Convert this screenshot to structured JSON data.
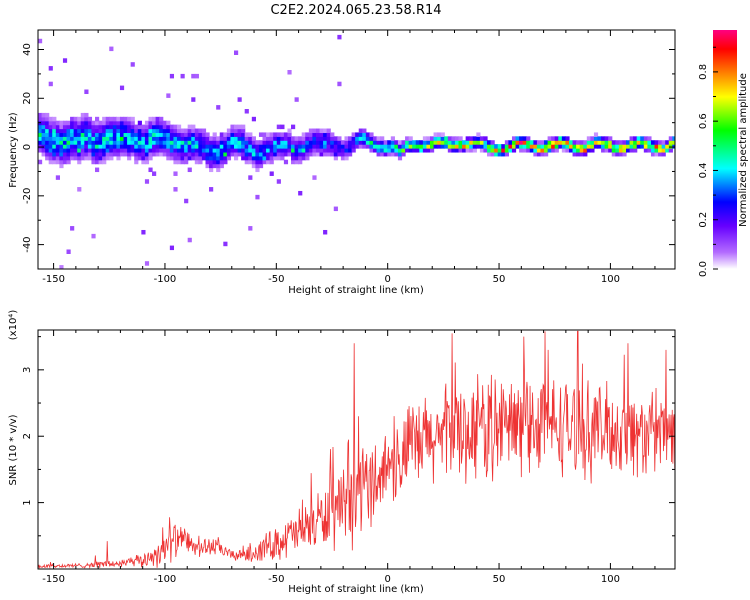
{
  "title": "C2E2.2024.065.23.58.R14",
  "chart_data": [
    {
      "type": "heatmap",
      "xlabel": "Height of straight line (km)",
      "ylabel": "Frequency (Hz)",
      "xlim": [
        -157,
        129
      ],
      "ylim": [
        -50,
        48
      ],
      "x_ticks": [
        -150,
        -100,
        -50,
        0,
        50,
        100
      ],
      "y_ticks": [
        -40,
        -20,
        0,
        20,
        40
      ],
      "colorbar": {
        "label": "Normalized spectral amplitude",
        "range": [
          0,
          0.97
        ],
        "ticks": [
          0.0,
          0.2,
          0.4,
          0.6,
          0.8
        ],
        "colormap": [
          "#ffffff",
          "#b36bff",
          "#6600ff",
          "#0000ff",
          "#00ffff",
          "#00ff00",
          "#ffff00",
          "#ff8000",
          "#ff0000",
          "#ff0080"
        ]
      },
      "ridge": {
        "x": [
          -157,
          -140,
          -120,
          -100,
          -90,
          -80,
          -70,
          -60,
          -50,
          -40,
          -30,
          -20,
          -10,
          0,
          5,
          10,
          20,
          30,
          40,
          50,
          60,
          80,
          100,
          129
        ],
        "center_hz": [
          3,
          2,
          3,
          2,
          1,
          -3,
          1,
          -2,
          -1,
          0,
          1,
          -1,
          2,
          0,
          -3,
          1,
          0,
          1,
          0,
          -1,
          0,
          0,
          0,
          0
        ],
        "peak_amplitude": [
          0.45,
          0.5,
          0.45,
          0.45,
          0.45,
          0.42,
          0.45,
          0.4,
          0.4,
          0.35,
          0.35,
          0.3,
          0.5,
          0.55,
          0.6,
          0.7,
          0.8,
          0.9,
          0.75,
          0.85,
          0.95,
          0.9,
          0.9,
          0.9
        ],
        "spread_hz": [
          14,
          14,
          13,
          12,
          11,
          11,
          10,
          10,
          9,
          9,
          9,
          7,
          6,
          5,
          5,
          4,
          4,
          4,
          4,
          4,
          4,
          4,
          4,
          4
        ]
      },
      "grid": false
    },
    {
      "type": "line",
      "xlabel": "Height of straight line (km)",
      "ylabel": "SNR (10 * v/v)",
      "multiplier": "(x10⁴)",
      "xlim": [
        -157,
        129
      ],
      "ylim": [
        0,
        3.6
      ],
      "x_ticks": [
        -150,
        -100,
        -50,
        0,
        50,
        100
      ],
      "y_ticks": [
        1,
        2,
        3
      ],
      "series": [
        {
          "color": "#ee3333",
          "envelope_x": [
            -157,
            -140,
            -130,
            -120,
            -110,
            -100,
            -95,
            -90,
            -85,
            -80,
            -75,
            -70,
            -60,
            -50,
            -40,
            -30,
            -20,
            -15,
            -10,
            -5,
            0,
            5,
            10,
            20,
            30,
            40,
            50,
            60,
            70,
            80,
            90,
            100,
            110,
            120,
            129
          ],
          "envelope_mean": [
            0.04,
            0.05,
            0.07,
            0.08,
            0.12,
            0.3,
            0.45,
            0.4,
            0.3,
            0.35,
            0.3,
            0.2,
            0.25,
            0.4,
            0.55,
            0.75,
            0.85,
            1.05,
            1.25,
            1.4,
            1.55,
            1.65,
            1.8,
            1.95,
            2.05,
            2.1,
            2.15,
            2.15,
            2.2,
            2.15,
            2.1,
            2.1,
            2.05,
            2.0,
            2.05
          ],
          "envelope_amplitude": [
            0.03,
            0.03,
            0.05,
            0.06,
            0.1,
            0.25,
            0.25,
            0.18,
            0.12,
            0.15,
            0.1,
            0.08,
            0.15,
            0.25,
            0.35,
            0.45,
            0.55,
            0.7,
            0.6,
            0.6,
            0.55,
            0.6,
            0.65,
            0.7,
            0.75,
            0.75,
            0.75,
            0.75,
            0.7,
            0.7,
            0.7,
            0.65,
            0.65,
            0.6,
            0.6
          ],
          "spikes": [
            {
              "x": -15,
              "y": 3.4
            },
            {
              "x": -13,
              "y": 2.3
            },
            {
              "x": 29,
              "y": 3.55
            },
            {
              "x": 61,
              "y": 3.5
            },
            {
              "x": 72,
              "y": 3.3
            },
            {
              "x": 108,
              "y": 3.4
            },
            {
              "x": 125,
              "y": 3.3
            },
            {
              "x": -98,
              "y": 0.78
            },
            {
              "x": -76,
              "y": 0.48
            },
            {
              "x": -126,
              "y": 0.42
            }
          ]
        }
      ],
      "grid": false
    }
  ]
}
